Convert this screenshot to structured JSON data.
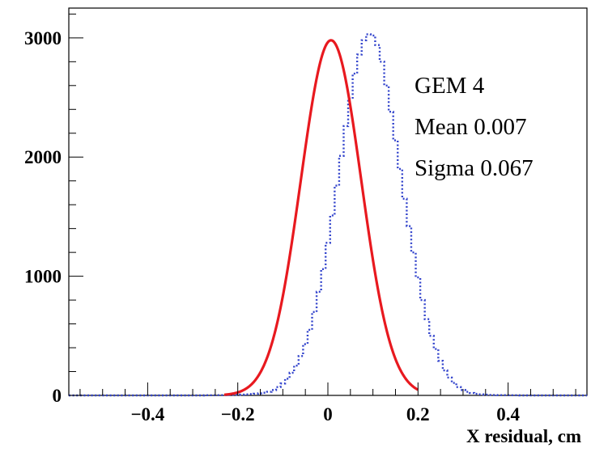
{
  "chart_data": {
    "type": "histogram-with-fit",
    "title": "",
    "xlabel": "X residual, cm",
    "ylabel": "",
    "xlim": [
      -0.575,
      0.575
    ],
    "ylim": [
      0,
      3250
    ],
    "x_ticks": [
      {
        "value": -0.4,
        "label": "−0.4"
      },
      {
        "value": -0.2,
        "label": "−0.2"
      },
      {
        "value": 0,
        "label": "0"
      },
      {
        "value": 0.2,
        "label": "0.2"
      },
      {
        "value": 0.4,
        "label": "0.4"
      }
    ],
    "y_ticks": [
      {
        "value": 0,
        "label": "0"
      },
      {
        "value": 1000,
        "label": "1000"
      },
      {
        "value": 2000,
        "label": "2000"
      },
      {
        "value": 3000,
        "label": "3000"
      }
    ],
    "annotations": [
      "GEM 4",
      "Mean 0.007",
      "Sigma 0.067"
    ],
    "series": [
      {
        "style": "dotted-histogram",
        "color": "#3344cc",
        "bin_width": 0.01,
        "x_start": -0.575,
        "values": [
          0,
          0,
          0,
          0,
          0,
          0,
          0,
          0,
          0,
          0,
          0,
          0,
          0,
          0,
          0,
          0,
          0,
          0,
          0,
          0,
          0,
          0,
          0,
          0,
          0,
          0,
          0,
          0,
          0,
          0,
          1,
          1,
          1,
          2,
          2,
          3,
          4,
          5,
          7,
          9,
          11,
          14,
          17,
          22,
          30,
          45,
          70,
          100,
          140,
          190,
          250,
          330,
          430,
          550,
          700,
          870,
          1060,
          1280,
          1510,
          1760,
          2010,
          2260,
          2490,
          2700,
          2860,
          2980,
          3030,
          3020,
          2940,
          2800,
          2600,
          2380,
          2140,
          1900,
          1650,
          1420,
          1200,
          990,
          800,
          640,
          500,
          390,
          290,
          210,
          150,
          105,
          70,
          45,
          30,
          20,
          13,
          9,
          6,
          4,
          3,
          2,
          2,
          1,
          1,
          1,
          0,
          0,
          0,
          0,
          0,
          0,
          0,
          0,
          0,
          0,
          0,
          0,
          0,
          0,
          0
        ]
      },
      {
        "style": "gaussian-fit",
        "color": "#e8191f",
        "amplitude": 2980,
        "mean": 0.007,
        "sigma": 0.067,
        "x_range": [
          -0.23,
          0.2
        ]
      }
    ],
    "grid": false,
    "legend": "none"
  }
}
